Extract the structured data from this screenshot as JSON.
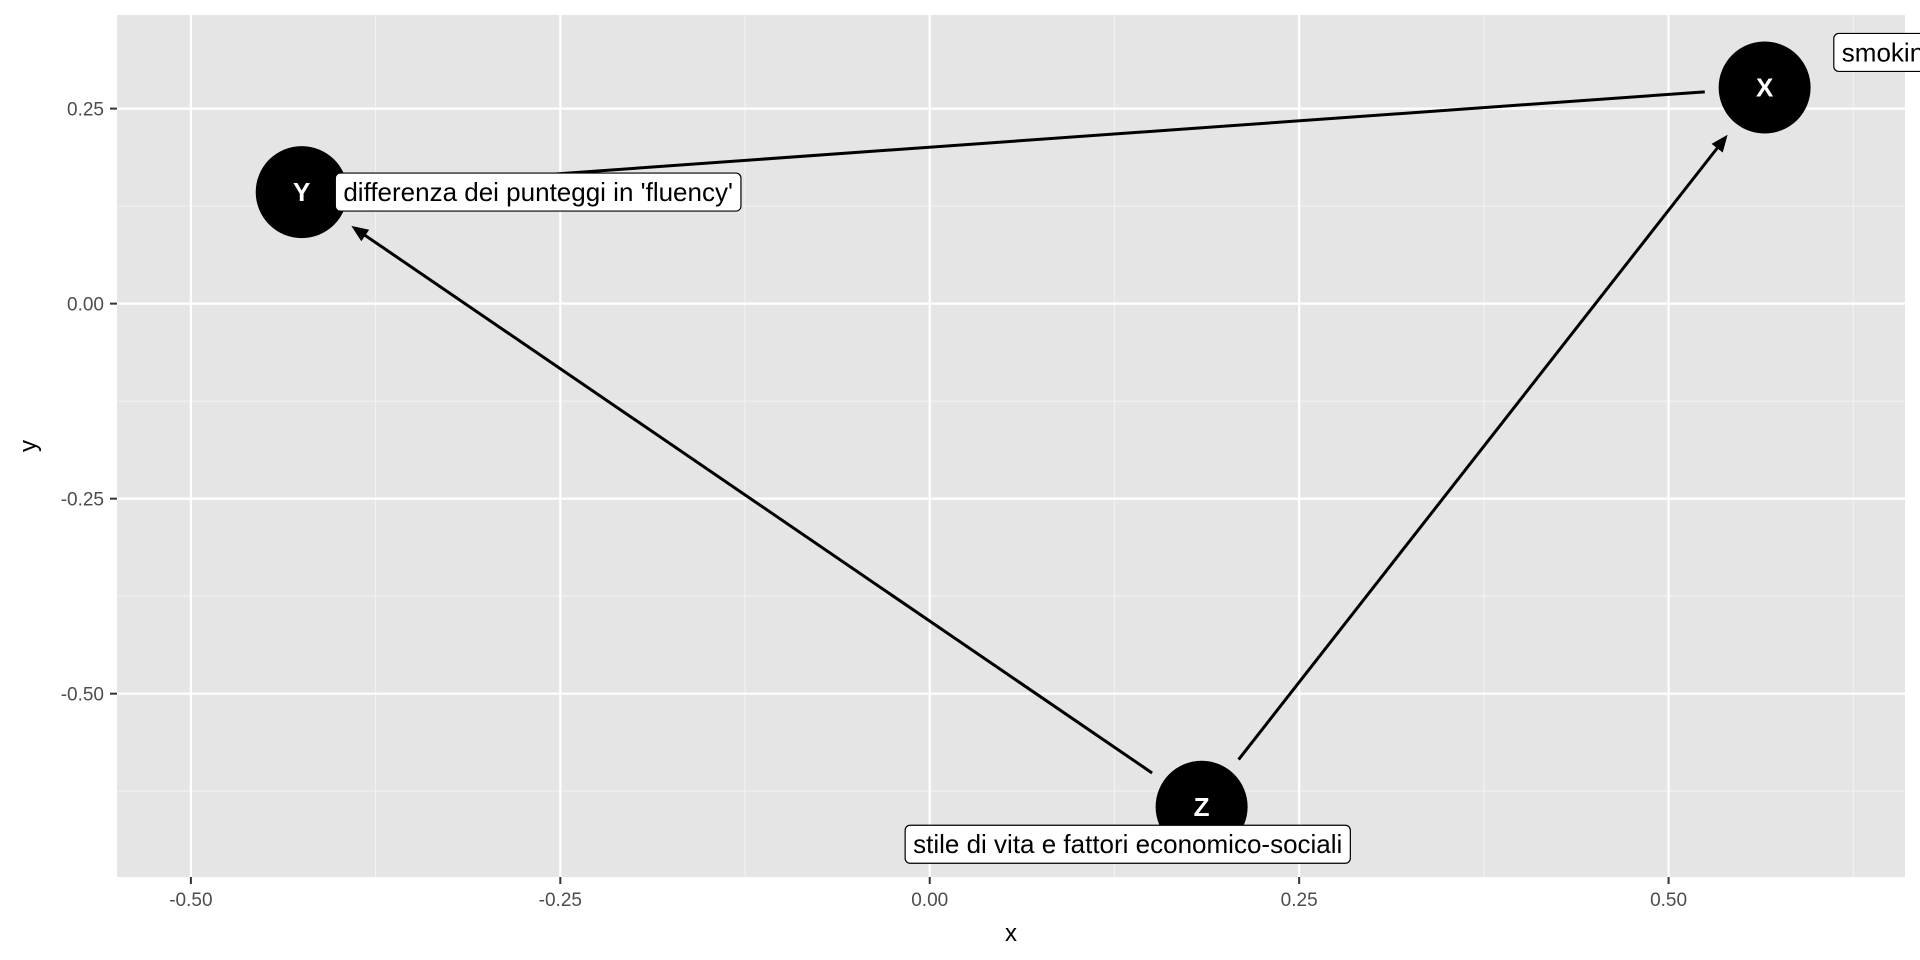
{
  "chart_data": {
    "type": "dag",
    "xlabel": "x",
    "ylabel": "y",
    "xlim": [
      -0.55,
      0.66
    ],
    "ylim": [
      -0.735,
      0.37
    ],
    "x_ticks": [
      -0.5,
      -0.25,
      0.0,
      0.25,
      0.5
    ],
    "x_tick_labels": [
      "-0.50",
      "-0.25",
      "0.00",
      "0.25",
      "0.50"
    ],
    "y_ticks": [
      0.25,
      0.0,
      -0.25,
      -0.5
    ],
    "y_tick_labels": [
      "0.25",
      "0.00",
      "-0.25",
      "-0.50"
    ],
    "grid": true,
    "nodes": [
      {
        "id": "X",
        "letter": "X",
        "x": 0.565,
        "y": 0.277,
        "label": "smoking",
        "label_x": 0.65,
        "label_y": 0.322
      },
      {
        "id": "Y",
        "letter": "Y",
        "x": -0.425,
        "y": 0.143,
        "label": "differenza dei punteggi in 'fluency'",
        "label_x": -0.265,
        "label_y": 0.143
      },
      {
        "id": "Z",
        "letter": "Z",
        "x": 0.184,
        "y": -0.645,
        "label": "stile di vita e fattori economico-sociali",
        "label_x": 0.134,
        "label_y": -0.693
      }
    ],
    "edges": [
      {
        "from": "X",
        "to": "Y",
        "arrowhead": false
      },
      {
        "from": "Z",
        "to": "Y",
        "arrowhead": true
      },
      {
        "from": "Z",
        "to": "X",
        "arrowhead": true
      }
    ]
  },
  "colors": {
    "panel_bg": "#e5e5e5",
    "grid_major": "#ffffff",
    "grid_minor": "#f2f2f2",
    "node_fill": "#000000",
    "node_text": "#ffffff",
    "edge": "#000000",
    "label_bg": "#ffffff",
    "tick_text": "#4d4d4d"
  }
}
